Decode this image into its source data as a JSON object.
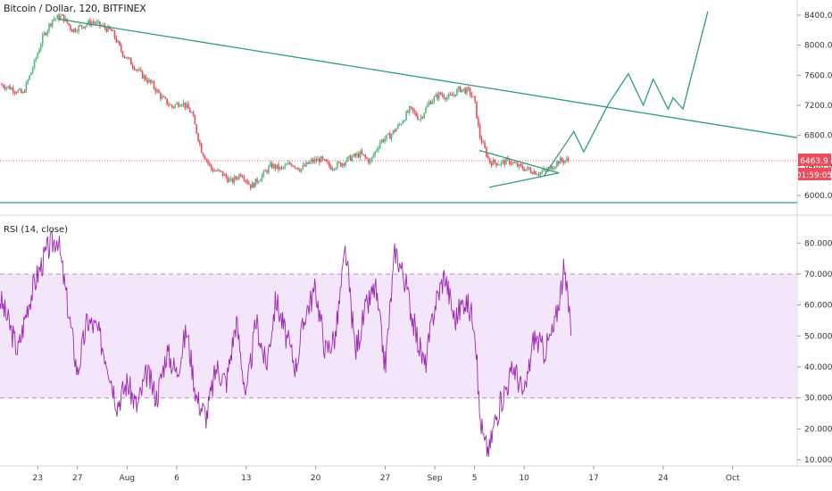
{
  "header": {
    "title": "Bitcoin / Dollar, 120, BITFINEX"
  },
  "rsi_panel": {
    "label": "RSI (14, close)"
  },
  "price_badge": {
    "price": "6463.9",
    "countdown": "01:59:05"
  },
  "colors": {
    "candle_up": "#53b987",
    "candle_down": "#eb4d5c",
    "trendline": "#2e9e7a",
    "rsi_line": "#9c27b0",
    "rsi_band": "#f3e6fb",
    "price_line": "#eb4d5c"
  },
  "chart_data": [
    {
      "type": "candlestick",
      "title": "Bitcoin / Dollar, 120, BITFINEX",
      "y_ticks": [
        6000,
        6400,
        6800,
        7200,
        7600,
        8000,
        8400
      ],
      "y_tick_labels": [
        "6000.0",
        "6400.0",
        "6800.0",
        "7200.0",
        "7600.0",
        "8000.0",
        "8400.0"
      ],
      "x_ticks": [
        {
          "label": "23",
          "day": 23
        },
        {
          "label": "27",
          "day": 27
        },
        {
          "label": "Aug",
          "day": 32
        },
        {
          "label": "6",
          "day": 37
        },
        {
          "label": "13",
          "day": 44
        },
        {
          "label": "20",
          "day": 51
        },
        {
          "label": "27",
          "day": 58
        },
        {
          "label": "Sep",
          "day": 63
        },
        {
          "label": "5",
          "day": 67
        },
        {
          "label": "10",
          "day": 72
        },
        {
          "label": "17",
          "day": 79
        },
        {
          "label": "24",
          "day": 86
        },
        {
          "label": "Oct",
          "day": 93
        }
      ],
      "x_range": [
        19.2,
        99.5
      ],
      "y_range": [
        5810,
        8530
      ],
      "last_price": 6463.9,
      "price_path": [
        [
          19.2,
          7480
        ],
        [
          20.5,
          7420
        ],
        [
          21.5,
          7350
        ],
        [
          22.5,
          7700
        ],
        [
          23.5,
          8100
        ],
        [
          24.5,
          8350
        ],
        [
          25.5,
          8380
        ],
        [
          26.5,
          8200
        ],
        [
          27.5,
          8260
        ],
        [
          28.5,
          8310
        ],
        [
          29.5,
          8250
        ],
        [
          30.5,
          8180
        ],
        [
          31.5,
          7900
        ],
        [
          32.5,
          7750
        ],
        [
          33.5,
          7600
        ],
        [
          34.5,
          7480
        ],
        [
          35.5,
          7300
        ],
        [
          36.5,
          7180
        ],
        [
          37.5,
          7250
        ],
        [
          38.5,
          7100
        ],
        [
          39.5,
          6600
        ],
        [
          40.5,
          6350
        ],
        [
          41.5,
          6300
        ],
        [
          42.5,
          6180
        ],
        [
          43.5,
          6300
        ],
        [
          44.5,
          6120
        ],
        [
          45.5,
          6250
        ],
        [
          46.5,
          6400
        ],
        [
          47.5,
          6350
        ],
        [
          48.5,
          6430
        ],
        [
          49.5,
          6350
        ],
        [
          50.5,
          6450
        ],
        [
          51.5,
          6480
        ],
        [
          52.5,
          6380
        ],
        [
          53.5,
          6420
        ],
        [
          54.5,
          6500
        ],
        [
          55.5,
          6550
        ],
        [
          56.5,
          6450
        ],
        [
          57.5,
          6720
        ],
        [
          58.5,
          6800
        ],
        [
          59.5,
          6950
        ],
        [
          60.5,
          7150
        ],
        [
          61.5,
          7020
        ],
        [
          62.5,
          7250
        ],
        [
          63.5,
          7350
        ],
        [
          64.5,
          7300
        ],
        [
          65.5,
          7420
        ],
        [
          66.5,
          7380
        ],
        [
          67.0,
          7260
        ],
        [
          67.5,
          6800
        ],
        [
          68.5,
          6450
        ],
        [
          69.5,
          6430
        ],
        [
          70.5,
          6460
        ],
        [
          71.5,
          6380
        ],
        [
          72.5,
          6340
        ],
        [
          73.5,
          6300
        ],
        [
          74.5,
          6350
        ],
        [
          75.5,
          6460
        ],
        [
          76.5,
          6470
        ]
      ],
      "trendlines": [
        {
          "name": "main-resistance",
          "points": [
            [
              25.0,
              8350
            ],
            [
              99.5,
              6770
            ]
          ]
        },
        {
          "name": "support",
          "points": [
            [
              19.2,
              5905
            ],
            [
              99.5,
              5905
            ]
          ]
        },
        {
          "name": "wedge-upper",
          "points": [
            [
              67.5,
              6600
            ],
            [
              75.5,
              6300
            ]
          ]
        },
        {
          "name": "wedge-lower",
          "points": [
            [
              68.5,
              6110
            ],
            [
              75.5,
              6300
            ]
          ]
        },
        {
          "name": "projection",
          "points": [
            [
              74.0,
              6260
            ],
            [
              77.0,
              6850
            ],
            [
              78.0,
              6580
            ],
            [
              80.5,
              7220
            ],
            [
              82.5,
              7620
            ],
            [
              84.0,
              7200
            ],
            [
              85.0,
              7550
            ],
            [
              86.5,
              7150
            ],
            [
              87.0,
              7300
            ],
            [
              88.0,
              7150
            ],
            [
              90.5,
              8450
            ]
          ]
        }
      ]
    },
    {
      "type": "line",
      "title": "RSI (14, close)",
      "y_ticks": [
        10,
        20,
        30,
        40,
        50,
        60,
        70,
        80
      ],
      "y_tick_labels": [
        "10.0000",
        "20.0000",
        "30.0000",
        "40.0000",
        "50.0000",
        "60.0000",
        "70.0000",
        "80.0000"
      ],
      "y_range": [
        8,
        87
      ],
      "overbought": 70,
      "oversold": 30,
      "rsi_path": [
        [
          19.2,
          62
        ],
        [
          20.0,
          55
        ],
        [
          21.0,
          45
        ],
        [
          22.0,
          60
        ],
        [
          23.0,
          70
        ],
        [
          24.0,
          78
        ],
        [
          25.0,
          82
        ],
        [
          26.0,
          60
        ],
        [
          27.0,
          38
        ],
        [
          28.0,
          55
        ],
        [
          29.0,
          52
        ],
        [
          30.0,
          42
        ],
        [
          31.0,
          28
        ],
        [
          32.0,
          35
        ],
        [
          33.0,
          27
        ],
        [
          34.0,
          38
        ],
        [
          35.0,
          30
        ],
        [
          36.0,
          45
        ],
        [
          37.0,
          38
        ],
        [
          38.0,
          52
        ],
        [
          39.0,
          30
        ],
        [
          40.0,
          24
        ],
        [
          41.0,
          40
        ],
        [
          42.0,
          35
        ],
        [
          43.0,
          55
        ],
        [
          44.0,
          30
        ],
        [
          45.0,
          55
        ],
        [
          46.0,
          40
        ],
        [
          47.0,
          62
        ],
        [
          48.0,
          50
        ],
        [
          49.0,
          40
        ],
        [
          50.0,
          58
        ],
        [
          51.0,
          65
        ],
        [
          52.0,
          45
        ],
        [
          53.0,
          50
        ],
        [
          54.0,
          78
        ],
        [
          55.0,
          45
        ],
        [
          56.0,
          58
        ],
        [
          57.0,
          66
        ],
        [
          58.0,
          40
        ],
        [
          59.0,
          78
        ],
        [
          60.0,
          68
        ],
        [
          61.0,
          52
        ],
        [
          62.0,
          40
        ],
        [
          63.0,
          60
        ],
        [
          64.0,
          70
        ],
        [
          65.0,
          55
        ],
        [
          66.0,
          62
        ],
        [
          67.0,
          55
        ],
        [
          67.5,
          25
        ],
        [
          68.0,
          15
        ],
        [
          68.5,
          13
        ],
        [
          69.0,
          22
        ],
        [
          70.0,
          32
        ],
        [
          71.0,
          40
        ],
        [
          72.0,
          30
        ],
        [
          73.0,
          50
        ],
        [
          74.0,
          45
        ],
        [
          75.0,
          52
        ],
        [
          76.0,
          71
        ],
        [
          76.8,
          52
        ]
      ]
    }
  ]
}
